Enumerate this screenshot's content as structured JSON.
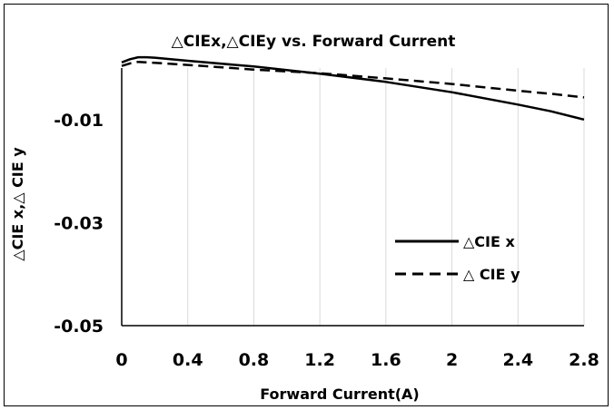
{
  "chart_data": {
    "type": "line",
    "title": "△CIEx,△CIEy vs. Forward Current",
    "xlabel": "Forward Current(A)",
    "ylabel": "△CIE x,△ CIE y",
    "xlim": [
      0,
      2.8
    ],
    "ylim": [
      -0.05,
      0.0
    ],
    "xticks": [
      "0",
      "0.4",
      "0.8",
      "1.2",
      "1.6",
      "2",
      "2.4",
      "2.8"
    ],
    "yticks": [
      "-0.01",
      "-0.03",
      "-0.05"
    ],
    "ytick_values": [
      -0.01,
      -0.03,
      -0.05
    ],
    "xtick_values": [
      0,
      0.4,
      0.8,
      1.2,
      1.6,
      2.0,
      2.4,
      2.8
    ],
    "grid": "vertical",
    "legend_position": "lower-right",
    "series": [
      {
        "name": "△CIE x",
        "style": "solid",
        "x": [
          0,
          0.05,
          0.1,
          0.15,
          0.2,
          0.4,
          0.8,
          1.2,
          1.6,
          2.0,
          2.4,
          2.6,
          2.8
        ],
        "y": [
          0.0011,
          0.0017,
          0.0021,
          0.0021,
          0.002,
          0.0014,
          0.0003,
          -0.0011,
          -0.0027,
          -0.0047,
          -0.0071,
          -0.0084,
          -0.01
        ]
      },
      {
        "name": "△ CIE y",
        "style": "dashed",
        "x": [
          0,
          0.05,
          0.1,
          0.15,
          0.2,
          0.4,
          0.8,
          1.2,
          1.6,
          2.0,
          2.4,
          2.6,
          2.8
        ],
        "y": [
          0.0004,
          0.0009,
          0.0012,
          0.0011,
          0.001,
          0.0006,
          -0.0003,
          -0.001,
          -0.002,
          -0.0031,
          -0.0044,
          -0.005,
          -0.0057
        ]
      }
    ]
  }
}
